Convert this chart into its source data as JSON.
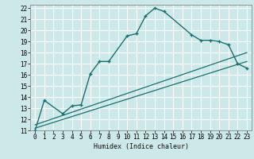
{
  "title": "",
  "xlabel": "Humidex (Indice chaleur)",
  "bg_color": "#cce8e8",
  "grid_color": "#ffffff",
  "line_color": "#1a7070",
  "xlim": [
    -0.5,
    23.5
  ],
  "ylim": [
    11,
    22.3
  ],
  "xticks": [
    0,
    1,
    2,
    3,
    4,
    5,
    6,
    7,
    8,
    9,
    10,
    11,
    12,
    13,
    14,
    15,
    16,
    17,
    18,
    19,
    20,
    21,
    22,
    23
  ],
  "yticks": [
    11,
    12,
    13,
    14,
    15,
    16,
    17,
    18,
    19,
    20,
    21,
    22
  ],
  "series1_x": [
    0,
    1,
    3,
    4,
    5,
    6,
    7,
    8,
    10,
    11,
    12,
    13,
    14,
    17,
    18,
    19,
    20,
    21,
    22,
    23
  ],
  "series1_y": [
    11,
    13.7,
    12.5,
    13.2,
    13.3,
    16.1,
    17.2,
    17.2,
    19.5,
    19.7,
    21.3,
    22.0,
    21.7,
    19.6,
    19.1,
    19.1,
    19.0,
    18.7,
    17.0,
    16.6
  ],
  "series2_x": [
    0,
    23
  ],
  "series2_y": [
    11.5,
    18.0
  ],
  "series3_x": [
    0,
    23
  ],
  "series3_y": [
    11.2,
    17.2
  ]
}
